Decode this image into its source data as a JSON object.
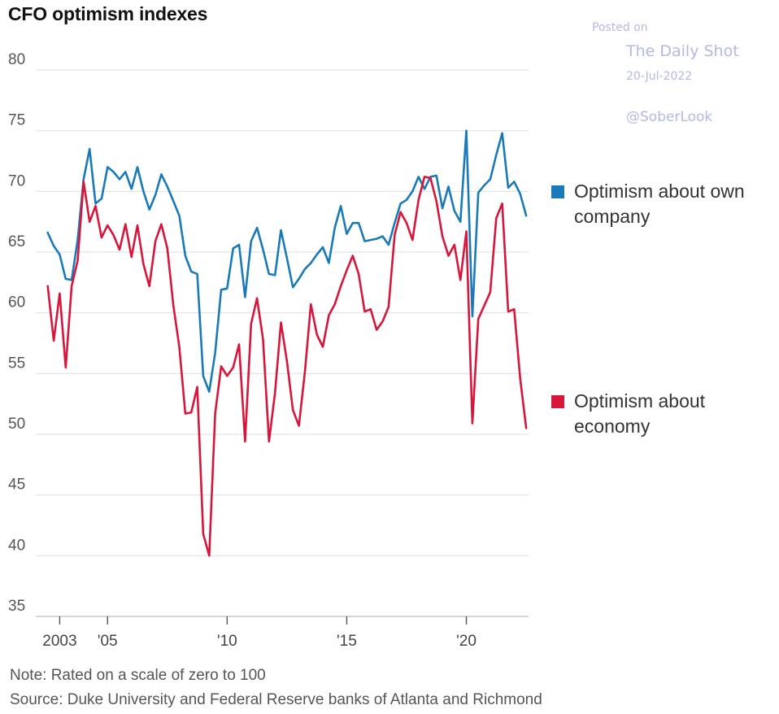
{
  "chart_data": {
    "type": "line",
    "title": "CFO optimism indexes",
    "xlabel": "",
    "ylabel": "",
    "xlim": [
      2002.0,
      2022.6
    ],
    "ylim": [
      35,
      80
    ],
    "yticks": [
      35,
      40,
      45,
      50,
      55,
      60,
      65,
      70,
      75,
      80
    ],
    "xticks": [
      {
        "value": 2003,
        "label": "2003"
      },
      {
        "value": 2005,
        "label": "'05"
      },
      {
        "value": 2010,
        "label": "'10"
      },
      {
        "value": 2015,
        "label": "'15"
      },
      {
        "value": 2020,
        "label": "'20"
      }
    ],
    "grid": true,
    "legend_position": "right",
    "series": [
      {
        "name": "Optimism about own company",
        "color": "#1a7ab8",
        "points": [
          [
            2002.5,
            66.6
          ],
          [
            2002.75,
            65.5
          ],
          [
            2003.0,
            64.8
          ],
          [
            2003.25,
            62.8
          ],
          [
            2003.5,
            62.7
          ],
          [
            2003.75,
            66.0
          ],
          [
            2004.0,
            71.0
          ],
          [
            2004.25,
            73.5
          ],
          [
            2004.5,
            69.0
          ],
          [
            2004.75,
            69.4
          ],
          [
            2005.0,
            72.0
          ],
          [
            2005.25,
            71.6
          ],
          [
            2005.5,
            71.0
          ],
          [
            2005.75,
            71.6
          ],
          [
            2006.0,
            70.2
          ],
          [
            2006.25,
            72.0
          ],
          [
            2006.5,
            70.0
          ],
          [
            2006.75,
            68.5
          ],
          [
            2007.0,
            69.7
          ],
          [
            2007.25,
            71.4
          ],
          [
            2007.5,
            70.4
          ],
          [
            2007.75,
            69.2
          ],
          [
            2008.0,
            68.0
          ],
          [
            2008.25,
            64.7
          ],
          [
            2008.5,
            63.4
          ],
          [
            2008.75,
            63.2
          ],
          [
            2009.0,
            54.8
          ],
          [
            2009.25,
            53.5
          ],
          [
            2009.5,
            56.7
          ],
          [
            2009.75,
            61.9
          ],
          [
            2010.0,
            62.0
          ],
          [
            2010.25,
            65.3
          ],
          [
            2010.5,
            65.6
          ],
          [
            2010.75,
            61.3
          ],
          [
            2011.0,
            65.9
          ],
          [
            2011.25,
            67.0
          ],
          [
            2011.5,
            65.2
          ],
          [
            2011.75,
            63.2
          ],
          [
            2012.0,
            63.1
          ],
          [
            2012.25,
            66.8
          ],
          [
            2012.5,
            64.5
          ],
          [
            2012.75,
            62.1
          ],
          [
            2013.0,
            62.8
          ],
          [
            2013.25,
            63.6
          ],
          [
            2013.5,
            64.1
          ],
          [
            2013.75,
            64.8
          ],
          [
            2014.0,
            65.4
          ],
          [
            2014.25,
            64.1
          ],
          [
            2014.5,
            67.0
          ],
          [
            2014.75,
            68.8
          ],
          [
            2015.0,
            66.5
          ],
          [
            2015.25,
            67.4
          ],
          [
            2015.5,
            67.4
          ],
          [
            2015.75,
            65.9
          ],
          [
            2016.0,
            66.0
          ],
          [
            2016.25,
            66.1
          ],
          [
            2016.5,
            66.3
          ],
          [
            2016.75,
            65.6
          ],
          [
            2017.0,
            67.4
          ],
          [
            2017.25,
            69.0
          ],
          [
            2017.5,
            69.3
          ],
          [
            2017.75,
            70.0
          ],
          [
            2018.0,
            71.2
          ],
          [
            2018.25,
            70.2
          ],
          [
            2018.5,
            71.2
          ],
          [
            2018.75,
            71.3
          ],
          [
            2019.0,
            68.6
          ],
          [
            2019.25,
            70.4
          ],
          [
            2019.5,
            68.4
          ],
          [
            2019.75,
            67.5
          ],
          [
            2020.0,
            75.0
          ],
          [
            2020.25,
            59.7
          ],
          [
            2020.5,
            69.9
          ],
          [
            2020.75,
            70.5
          ],
          [
            2021.0,
            71.0
          ],
          [
            2021.25,
            73.0
          ],
          [
            2021.5,
            74.8
          ],
          [
            2021.75,
            70.3
          ],
          [
            2022.0,
            70.8
          ],
          [
            2022.25,
            69.8
          ],
          [
            2022.5,
            68.0
          ]
        ]
      },
      {
        "name": "Optimism about economy",
        "color": "#d6163b",
        "points": [
          [
            2002.5,
            62.2
          ],
          [
            2002.75,
            57.7
          ],
          [
            2003.0,
            61.6
          ],
          [
            2003.25,
            55.5
          ],
          [
            2003.5,
            62.2
          ],
          [
            2003.75,
            64.3
          ],
          [
            2004.0,
            70.8
          ],
          [
            2004.25,
            67.5
          ],
          [
            2004.5,
            68.8
          ],
          [
            2004.75,
            66.2
          ],
          [
            2005.0,
            67.2
          ],
          [
            2005.25,
            66.4
          ],
          [
            2005.5,
            65.2
          ],
          [
            2005.75,
            67.3
          ],
          [
            2006.0,
            64.6
          ],
          [
            2006.25,
            67.2
          ],
          [
            2006.5,
            64.0
          ],
          [
            2006.75,
            62.2
          ],
          [
            2007.0,
            65.9
          ],
          [
            2007.25,
            67.3
          ],
          [
            2007.5,
            65.3
          ],
          [
            2007.75,
            60.6
          ],
          [
            2008.0,
            57.2
          ],
          [
            2008.25,
            51.7
          ],
          [
            2008.5,
            51.8
          ],
          [
            2008.75,
            53.9
          ],
          [
            2009.0,
            41.8
          ],
          [
            2009.25,
            40.0
          ],
          [
            2009.5,
            51.7
          ],
          [
            2009.75,
            55.6
          ],
          [
            2010.0,
            54.8
          ],
          [
            2010.25,
            55.5
          ],
          [
            2010.5,
            57.4
          ],
          [
            2010.75,
            49.4
          ],
          [
            2011.0,
            59.1
          ],
          [
            2011.25,
            61.2
          ],
          [
            2011.5,
            57.8
          ],
          [
            2011.75,
            49.4
          ],
          [
            2012.0,
            53.4
          ],
          [
            2012.25,
            59.2
          ],
          [
            2012.5,
            56.0
          ],
          [
            2012.75,
            52.0
          ],
          [
            2013.0,
            50.7
          ],
          [
            2013.25,
            55.1
          ],
          [
            2013.5,
            60.7
          ],
          [
            2013.75,
            58.2
          ],
          [
            2014.0,
            57.2
          ],
          [
            2014.25,
            59.8
          ],
          [
            2014.5,
            60.7
          ],
          [
            2014.75,
            62.2
          ],
          [
            2015.0,
            63.5
          ],
          [
            2015.25,
            64.7
          ],
          [
            2015.5,
            63.2
          ],
          [
            2015.75,
            60.1
          ],
          [
            2016.0,
            60.3
          ],
          [
            2016.25,
            58.6
          ],
          [
            2016.5,
            59.3
          ],
          [
            2016.75,
            60.5
          ],
          [
            2017.0,
            66.4
          ],
          [
            2017.25,
            68.3
          ],
          [
            2017.5,
            67.4
          ],
          [
            2017.75,
            66.0
          ],
          [
            2018.0,
            69.3
          ],
          [
            2018.25,
            71.2
          ],
          [
            2018.5,
            71.1
          ],
          [
            2018.75,
            69.2
          ],
          [
            2019.0,
            66.3
          ],
          [
            2019.25,
            64.7
          ],
          [
            2019.5,
            65.6
          ],
          [
            2019.75,
            62.7
          ],
          [
            2020.0,
            66.7
          ],
          [
            2020.25,
            50.9
          ],
          [
            2020.5,
            59.5
          ],
          [
            2020.75,
            60.6
          ],
          [
            2021.0,
            61.7
          ],
          [
            2021.25,
            67.8
          ],
          [
            2021.5,
            69.0
          ],
          [
            2021.75,
            60.1
          ],
          [
            2022.0,
            60.3
          ],
          [
            2022.25,
            54.6
          ],
          [
            2022.5,
            50.5
          ]
        ]
      }
    ],
    "note": "Note: Rated on a scale of zero to 100",
    "source": "Source: Duke University and Federal Reserve banks of Atlanta and Richmond"
  },
  "watermark": {
    "posted": "Posted on",
    "name": "The Daily Shot",
    "date": "20-Jul-2022",
    "handle": "@SoberLook"
  }
}
